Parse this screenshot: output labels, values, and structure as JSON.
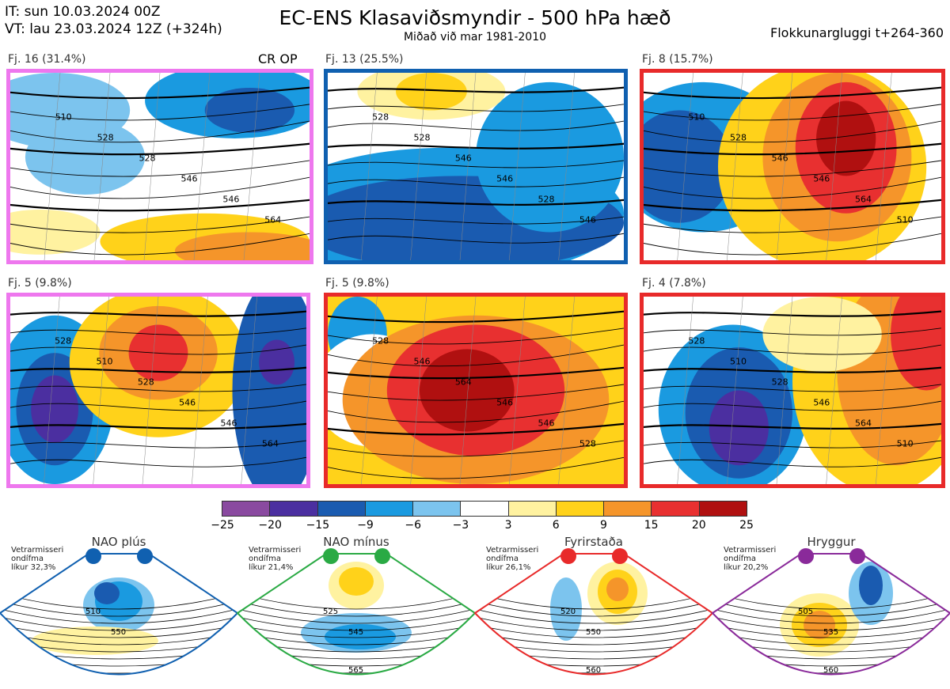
{
  "header": {
    "init_time": "IT: sun 10.03.2024 00Z",
    "valid_time": "VT: lau 23.03.2024 12Z  (+324h)",
    "title": "EC-ENS Klasaviðsmyndir - 500 hPa hæð",
    "subtitle": "Miðað við mar 1981-2010",
    "window": "Flokkunargluggi t+264-360"
  },
  "cr_op_label": "CR OP",
  "panels": [
    {
      "label": "Fj. 16 (31.4%)",
      "border": "#ee77ee",
      "contours": [
        "510",
        "528",
        "528",
        "546",
        "546",
        "564"
      ]
    },
    {
      "label": "Fj. 13 (25.5%)",
      "border": "#1060b0",
      "contours": [
        "528",
        "528",
        "546",
        "546",
        "528",
        "546"
      ]
    },
    {
      "label": "Fj. 8 (15.7%)",
      "border": "#e82a2a",
      "contours": [
        "510",
        "528",
        "546",
        "546",
        "564",
        "510"
      ]
    },
    {
      "label": "Fj. 5 (9.8%)",
      "border": "#ee77ee",
      "contours": [
        "528",
        "510",
        "528",
        "546",
        "546",
        "564"
      ]
    },
    {
      "label": "Fj. 5 (9.8%)",
      "border": "#e82a2a",
      "contours": [
        "528",
        "546",
        "564",
        "546",
        "546",
        "528"
      ]
    },
    {
      "label": "Fj. 4 (7.8%)",
      "border": "#e82a2a",
      "contours": [
        "528",
        "510",
        "528",
        "546",
        "564",
        "510"
      ]
    }
  ],
  "colorbar": {
    "colors": [
      "#8a4aa0",
      "#4b2fa0",
      "#1a5bb0",
      "#1a9ae0",
      "#7cc4ee",
      "#ffffff",
      "#fff2a0",
      "#ffd21a",
      "#f5952a",
      "#e83030",
      "#b01010"
    ],
    "labels": [
      "−25",
      "−20",
      "−15",
      "−9",
      "−6",
      "−3",
      "3",
      "6",
      "9",
      "15",
      "20",
      "25"
    ]
  },
  "regimes": [
    {
      "name": "NAO plús",
      "prob_lines": [
        "Vetrarmisseri",
        "ondífma",
        "líkur 32,3%"
      ],
      "color": "#1060b0",
      "contours": [
        "510",
        "550"
      ]
    },
    {
      "name": "NAO mínus",
      "prob_lines": [
        "Vetrarmisseri",
        "ondífma",
        "líkur 21,4%"
      ],
      "color": "#2aaa44",
      "contours": [
        "525",
        "545",
        "565"
      ]
    },
    {
      "name": "Fyrirstaða",
      "prob_lines": [
        "Vetrarmisseri",
        "ondífma",
        "líkur 26,1%"
      ],
      "color": "#e82a2a",
      "contours": [
        "520",
        "550",
        "560"
      ]
    },
    {
      "name": "Hryggur",
      "prob_lines": [
        "Vetrarmisseri",
        "ondífma",
        "líkur 20,2%"
      ],
      "color": "#8a2a9a",
      "contours": [
        "505",
        "535",
        "560"
      ]
    }
  ]
}
